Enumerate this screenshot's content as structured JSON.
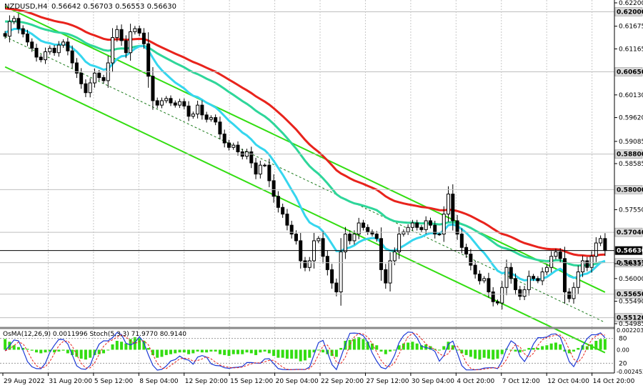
{
  "header": {
    "symbol": "NZDUSD,H4",
    "ohlc": "0.56642 0.56703 0.56553 0.56630"
  },
  "indicator_header": "OsMA(12,26,9) 0.0011996  Stoch(5,3,3) 71.9770 80.9140",
  "colors": {
    "bull": "#000000",
    "bear": "#000000",
    "ema_red": "#e8231c",
    "ema_green": "#2ed69a",
    "ema_cyan": "#35d6ee",
    "channel": "#33dd11",
    "grid": "#c8c8c8",
    "osma": "#33dd11",
    "stoch_main": "#1c39d6",
    "stoch_signal": "#e8231c"
  },
  "chart_data": [
    {
      "type": "candlestick",
      "panel": "main",
      "ylim": [
        0.54985,
        0.622
      ],
      "price_ticks": [
        "0.62200",
        "0.61675",
        "0.61165",
        "0.60130",
        "0.59620",
        "0.59085",
        "0.58585",
        "0.57550",
        "0.56335",
        "0.56000",
        "0.55490",
        "0.54985"
      ],
      "level_labels": [
        "0.62000",
        "0.60650",
        "0.58800",
        "0.58000",
        "0.57040",
        "0.56630",
        "0.56357",
        "0.55650",
        "0.55120"
      ],
      "current_price": "0.56630",
      "x_labels": [
        "29 Aug 2022",
        "31 Aug 20:00",
        "5 Sep 12:00",
        "8 Sep 04:00",
        "12 Sep 20:00",
        "15 Sep 12:00",
        "20 Sep 04:00",
        "22 Sep 20:00",
        "27 Sep 12:00",
        "30 Sep 04:00",
        "4 Oct 20:00",
        "7 Oct 12:00",
        "12 Oct 04:00",
        "14 Oct 20:00"
      ],
      "closes": [
        0.6145,
        0.6178,
        0.6185,
        0.6162,
        0.615,
        0.6132,
        0.6118,
        0.6098,
        0.6092,
        0.611,
        0.6118,
        0.6108,
        0.6125,
        0.6132,
        0.6112,
        0.6085,
        0.6062,
        0.6038,
        0.6018,
        0.604,
        0.6062,
        0.6052,
        0.6045,
        0.6085,
        0.6142,
        0.616,
        0.6135,
        0.6108,
        0.6155,
        0.6162,
        0.6152,
        0.6128,
        0.6055,
        0.6,
        0.599,
        0.6,
        0.6005,
        0.5995,
        0.599,
        0.5998,
        0.5988,
        0.5965,
        0.597,
        0.599,
        0.5968,
        0.5958,
        0.5962,
        0.5952,
        0.5925,
        0.5905,
        0.5895,
        0.59,
        0.5885,
        0.5875,
        0.5885,
        0.586,
        0.5835,
        0.5855,
        0.5855,
        0.582,
        0.5785,
        0.576,
        0.5745,
        0.572,
        0.57,
        0.5685,
        0.564,
        0.5625,
        0.564,
        0.5685,
        0.569,
        0.565,
        0.562,
        0.559,
        0.557,
        0.566,
        0.57,
        0.5685,
        0.57,
        0.5725,
        0.5715,
        0.5705,
        0.57,
        0.569,
        0.562,
        0.559,
        0.564,
        0.566,
        0.57,
        0.5705,
        0.5715,
        0.5725,
        0.5715,
        0.571,
        0.573,
        0.572,
        0.57,
        0.57,
        0.5745,
        0.579,
        0.573,
        0.57,
        0.567,
        0.5655,
        0.563,
        0.561,
        0.5595,
        0.56,
        0.557,
        0.5548,
        0.5545,
        0.558,
        0.5625,
        0.56,
        0.5575,
        0.556,
        0.5575,
        0.5605,
        0.56,
        0.5595,
        0.5615,
        0.5625,
        0.565,
        0.566,
        0.5645,
        0.557,
        0.5555,
        0.558,
        0.5615,
        0.564,
        0.5625,
        0.565,
        0.568,
        0.569,
        0.5663
      ],
      "osma_values": [
        0.0012,
        0.0009,
        0.0005,
        0.0003,
        0.0002,
        0.0001,
        -0.0001,
        -0.0003,
        -0.0004,
        -0.0003,
        -0.0002,
        -0.0003,
        -0.0002,
        -0.0001,
        -0.0004,
        -0.0006,
        -0.0008,
        -0.001,
        -0.0011,
        -0.0009,
        -0.0006,
        -0.0005,
        -0.0004,
        0.0,
        0.0006,
        0.001,
        0.0009,
        0.0007,
        0.0012,
        0.0014,
        0.0013,
        0.001,
        0.0002,
        -0.0006,
        -0.0009,
        -0.0008,
        -0.0006,
        -0.0005,
        -0.0004,
        -0.0003,
        -0.0003,
        -0.0005,
        -0.0004,
        -0.0002,
        -0.0003,
        -0.0003,
        -0.0002,
        -0.0002,
        -0.0005,
        -0.0006,
        -0.0007,
        -0.0005,
        -0.0005,
        -0.0005,
        -0.0003,
        -0.0004,
        -0.0006,
        -0.0003,
        -0.0002,
        -0.0004,
        -0.0007,
        -0.0009,
        -0.0009,
        -0.001,
        -0.001,
        -0.001,
        -0.0013,
        -0.0012,
        -0.0009,
        -0.0003,
        0.0,
        -0.0003,
        -0.0005,
        -0.0007,
        -0.0008,
        0.0002,
        0.001,
        0.0011,
        0.0012,
        0.0014,
        0.0012,
        0.0009,
        0.0007,
        0.0005,
        -0.0002,
        -0.0005,
        -0.0002,
        0.0,
        0.0005,
        0.0007,
        0.0008,
        0.0009,
        0.0007,
        0.0005,
        0.0006,
        0.0004,
        0.0001,
        0.0,
        0.0004,
        0.0009,
        0.0005,
        0.0,
        -0.0004,
        -0.0006,
        -0.0008,
        -0.001,
        -0.0011,
        -0.0009,
        -0.001,
        -0.0011,
        -0.001,
        -0.0005,
        0.0001,
        0.0,
        -0.0002,
        -0.0003,
        -0.0001,
        0.0002,
        0.0002,
        0.0002,
        0.0004,
        0.0005,
        0.0007,
        0.0008,
        0.0006,
        -0.0002,
        -0.0004,
        -0.0002,
        0.0002,
        0.0005,
        0.0004,
        0.0006,
        0.001,
        0.0012,
        0.0012
      ],
      "osma_ticks": [
        "0.00220321",
        "0.00",
        "-0.00245223"
      ],
      "stoch_levels": [
        "80",
        "20"
      ]
    }
  ]
}
